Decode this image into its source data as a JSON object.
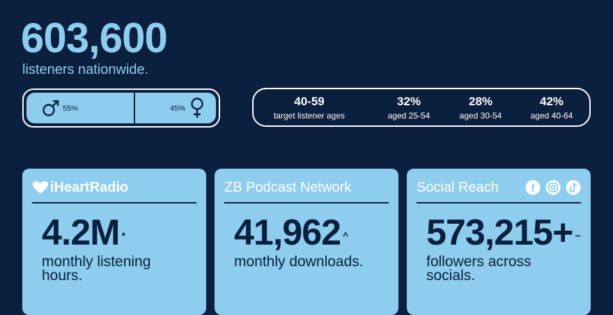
{
  "headline": {
    "value": "603,600",
    "caption": "listeners nationwide."
  },
  "gender": {
    "male": "55%",
    "female": "45%"
  },
  "ages": {
    "target": {
      "value": "40-59",
      "label": "target listener ages"
    },
    "groups": [
      {
        "value": "32%",
        "label": "aged 25-54"
      },
      {
        "value": "28%",
        "label": "aged 30-54"
      },
      {
        "value": "42%",
        "label": "aged 40-64"
      }
    ]
  },
  "cards": [
    {
      "title": "iHeartRadio",
      "value": "4.2M",
      "note": "*",
      "caption": [
        "monthly listening",
        "hours."
      ]
    },
    {
      "title": "ZB Podcast Network",
      "value": "41,962",
      "note": "^",
      "caption": [
        "monthly downloads."
      ]
    },
    {
      "title": "Social Reach",
      "value": "573,215+",
      "note": "~",
      "caption": [
        "followers across",
        "socials."
      ]
    }
  ]
}
